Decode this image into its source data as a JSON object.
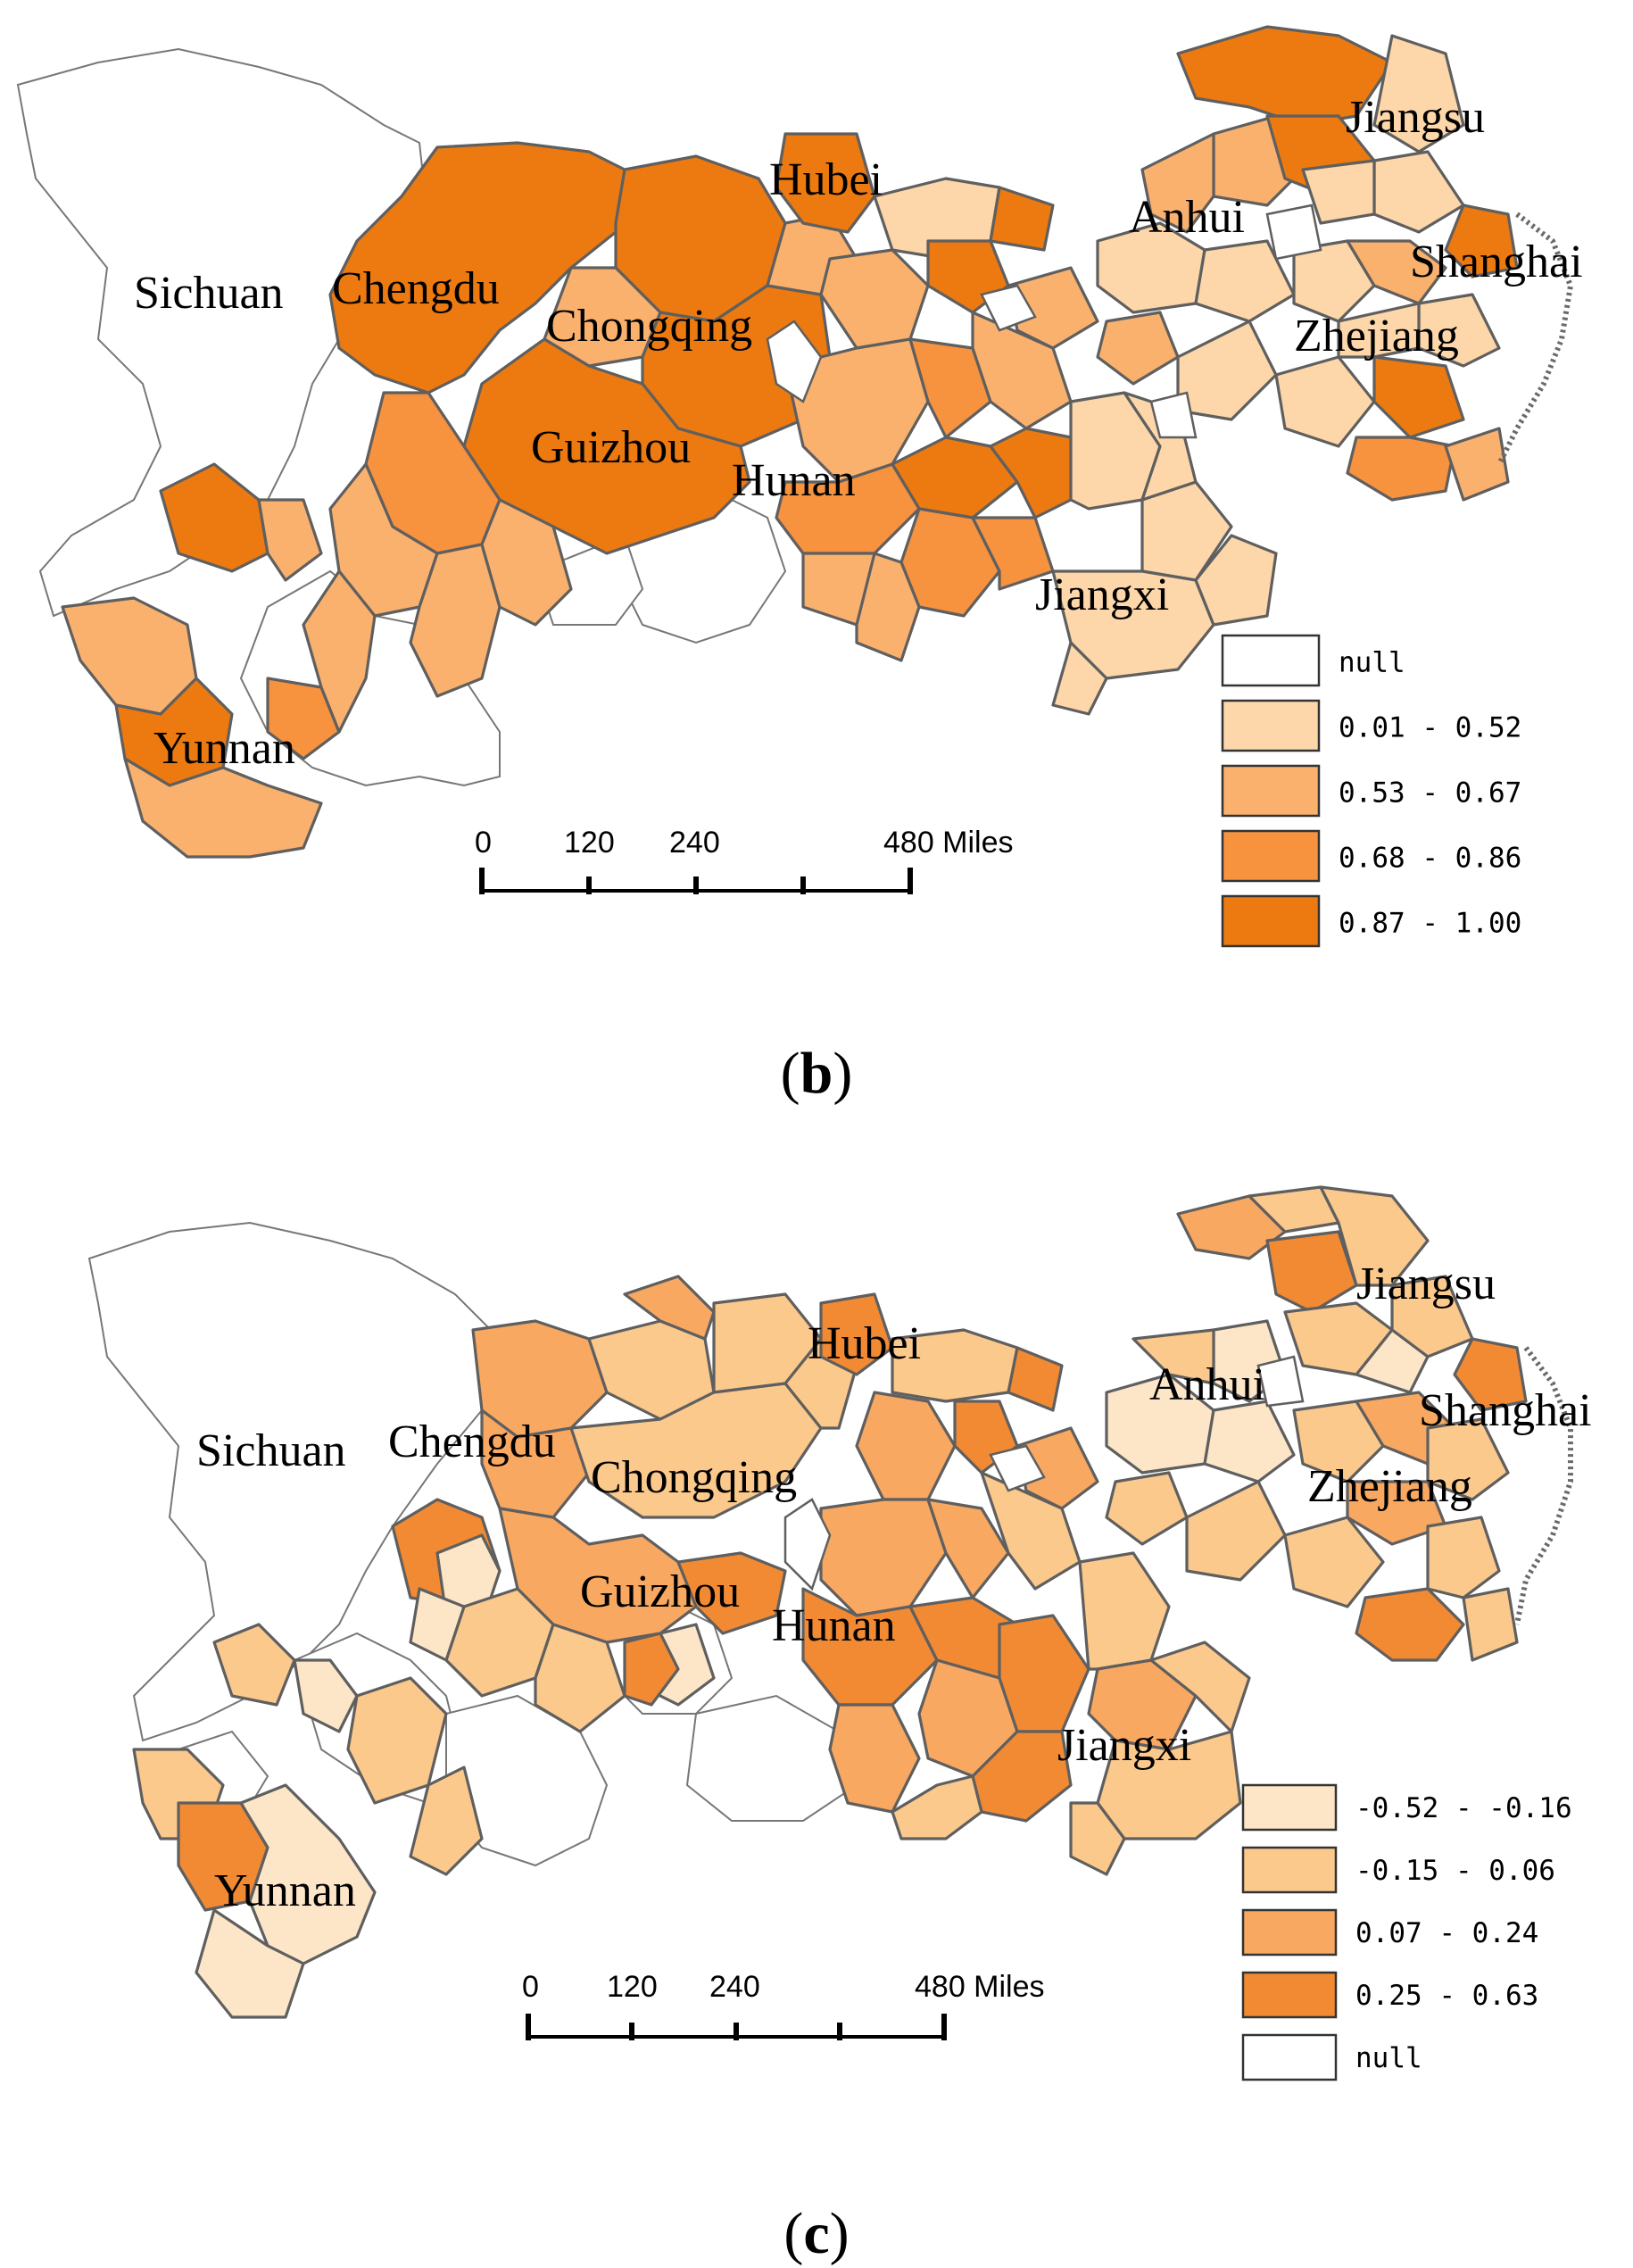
{
  "colors": {
    "null": "#ffffff",
    "class1": "#fdd7a9",
    "class2": "#fab16e",
    "class3": "#f7923f",
    "class4": "#ec7a10",
    "c_class1": "#fde6c8",
    "c_class2": "#fcc98c",
    "c_class3": "#f9a861",
    "c_class4": "#f28a34"
  },
  "panel_b": {
    "caption_open": "(",
    "caption_letter": "b",
    "caption_close": ")",
    "places": {
      "sichuan": "Sichuan",
      "chengdu": "Chengdu",
      "chongqing": "Chongqing",
      "guizhou": "Guizhou",
      "yunnan": "Yunnan",
      "hubei": "Hubei",
      "hunan": "Hunan",
      "jiangxi": "Jiangxi",
      "anhui": "Anhui",
      "jiangsu": "Jiangsu",
      "shanghai": "Shanghai",
      "zhejiang": "Zhejiang"
    },
    "scale": {
      "t0": "0",
      "t1": "120",
      "t2": "240",
      "t3": "480 Miles"
    },
    "legend": [
      {
        "label": "null",
        "color": "#ffffff"
      },
      {
        "label": "0.01 - 0.52",
        "color": "#fdd7a9"
      },
      {
        "label": "0.53 - 0.67",
        "color": "#fab16e"
      },
      {
        "label": "0.68 - 0.86",
        "color": "#f7923f"
      },
      {
        "label": "0.87 - 1.00",
        "color": "#ec7a10"
      }
    ]
  },
  "panel_c": {
    "caption_open": "(",
    "caption_letter": "c",
    "caption_close": ")",
    "places": {
      "sichuan": "Sichuan",
      "chengdu": "Chengdu",
      "chongqing": "Chongqing",
      "guizhou": "Guizhou",
      "yunnan": "Yunnan",
      "hubei": "Hubei",
      "hunan": "Hunan",
      "jiangxi": "Jiangxi",
      "anhui": "Anhui",
      "jiangsu": "Jiangsu",
      "shanghai": "Shanghai",
      "zhejiang": "Zhejiang"
    },
    "scale": {
      "t0": "0",
      "t1": "120",
      "t2": "240",
      "t3": "480 Miles"
    },
    "legend": [
      {
        "label": "-0.52 - -0.16",
        "color": "#fde6c8"
      },
      {
        "label": "-0.15 - 0.06",
        "color": "#fcc98c"
      },
      {
        "label": "0.07 - 0.24",
        "color": "#f9a861"
      },
      {
        "label": "0.25 - 0.63",
        "color": "#f28a34"
      },
      {
        "label": "null",
        "color": "#ffffff"
      }
    ]
  }
}
